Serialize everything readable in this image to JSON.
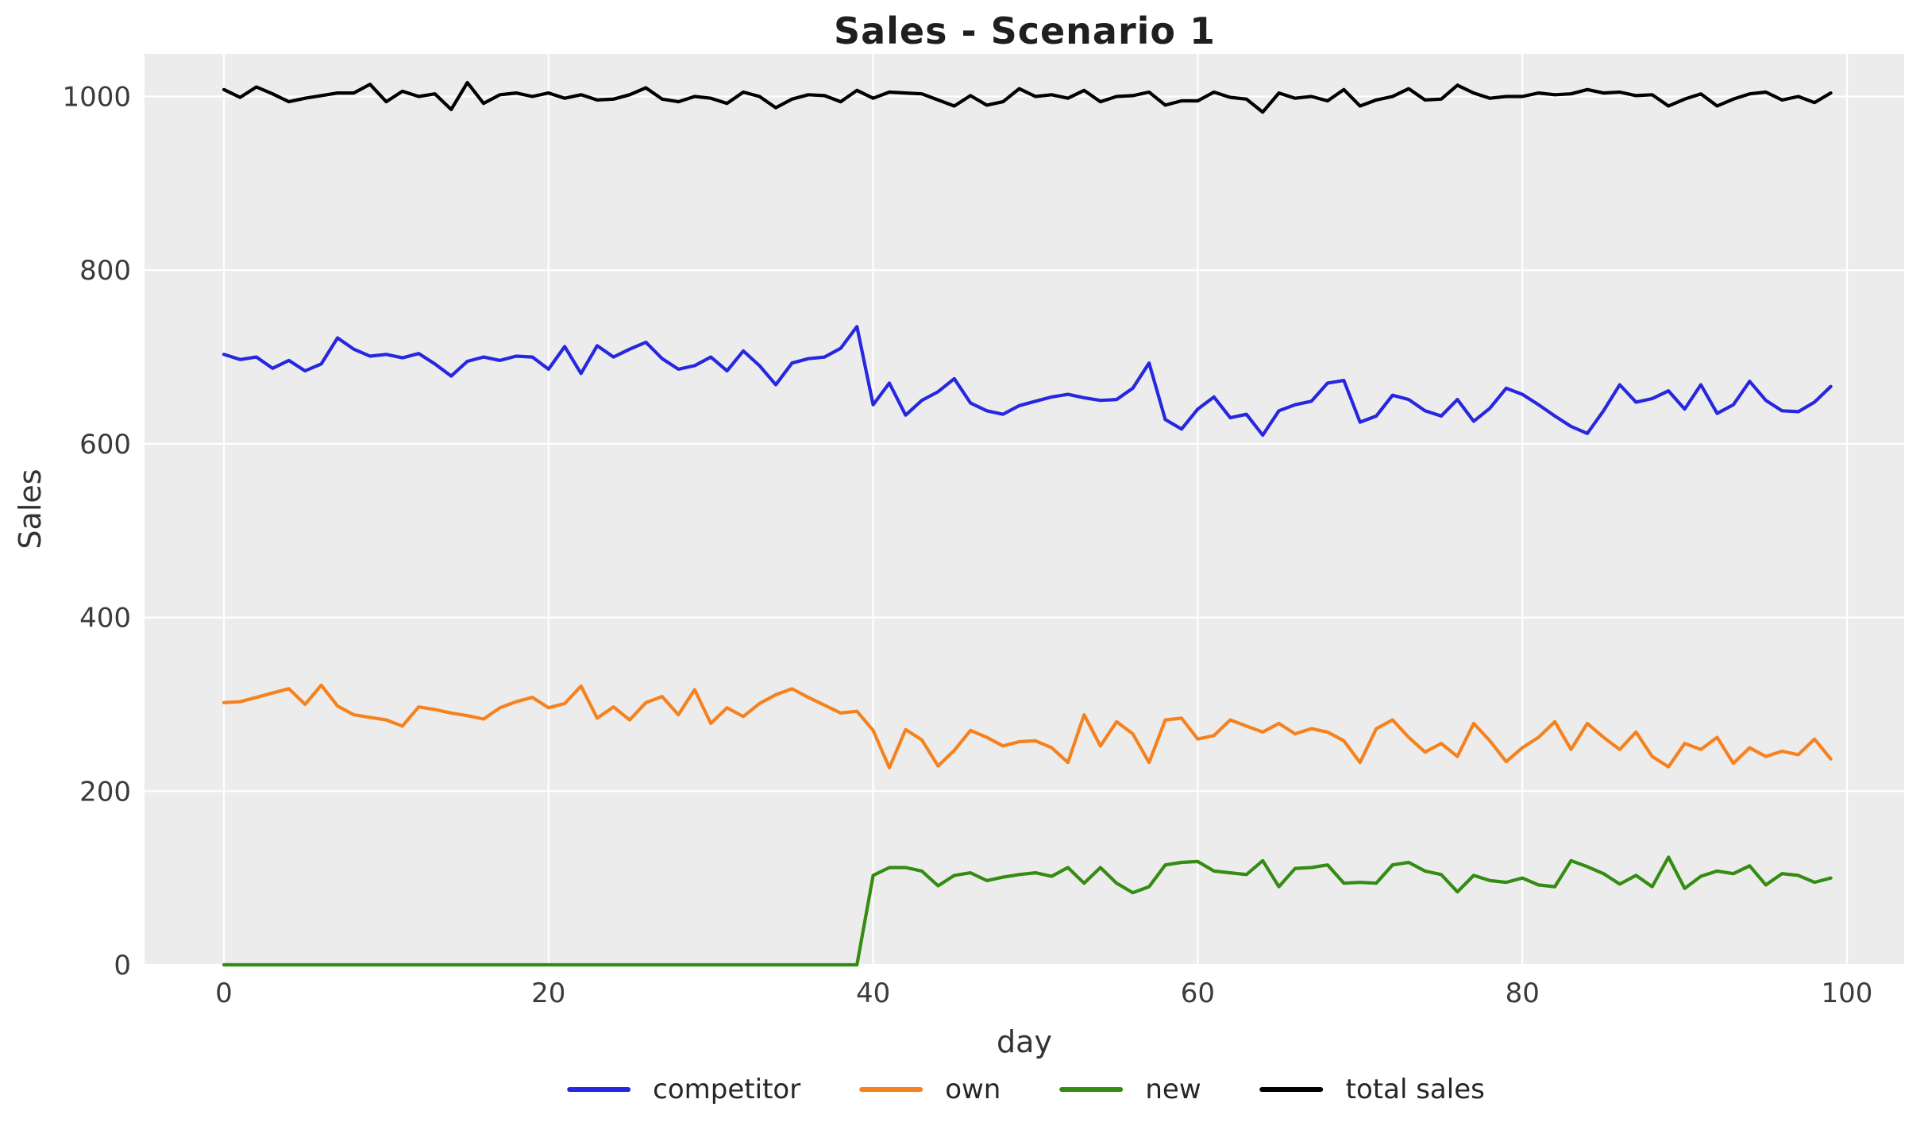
{
  "title": "Sales - Scenario 1",
  "chart_data": {
    "type": "line",
    "title": "Sales - Scenario 1",
    "xlabel": "day",
    "ylabel": "Sales",
    "grid": true,
    "legend_position": "bottom",
    "plot_background": "#ECECEC",
    "gridline_color": "#FFFFFF",
    "x_ticks": [
      0,
      20,
      40,
      60,
      80,
      100
    ],
    "y_ticks": [
      0,
      200,
      400,
      600,
      800,
      1000
    ],
    "xlim": [
      -4.9,
      103.4
    ],
    "ylim": [
      0,
      1049
    ],
    "x": [
      0,
      1,
      2,
      3,
      4,
      5,
      6,
      7,
      8,
      9,
      10,
      11,
      12,
      13,
      14,
      15,
      16,
      17,
      18,
      19,
      20,
      21,
      22,
      23,
      24,
      25,
      26,
      27,
      28,
      29,
      30,
      31,
      32,
      33,
      34,
      35,
      36,
      37,
      38,
      39,
      40,
      41,
      42,
      43,
      44,
      45,
      46,
      47,
      48,
      49,
      50,
      51,
      52,
      53,
      54,
      55,
      56,
      57,
      58,
      59,
      60,
      61,
      62,
      63,
      64,
      65,
      66,
      67,
      68,
      69,
      70,
      71,
      72,
      73,
      74,
      75,
      76,
      77,
      78,
      79,
      80,
      81,
      82,
      83,
      84,
      85,
      86,
      87,
      88,
      89,
      90,
      91,
      92,
      93,
      94,
      95,
      96,
      97,
      98,
      99
    ],
    "series": [
      {
        "name": "competitor",
        "color": "#2727E0",
        "values": [
          703,
          697,
          700,
          687,
          696,
          684,
          692,
          722,
          709,
          701,
          703,
          699,
          704,
          692,
          678,
          695,
          700,
          696,
          701,
          700,
          686,
          712,
          681,
          713,
          700,
          709,
          717,
          698,
          686,
          690,
          700,
          684,
          707,
          690,
          668,
          693,
          698,
          700,
          710,
          735,
          645,
          670,
          633,
          650,
          660,
          675,
          647,
          638,
          634,
          644,
          649,
          654,
          657,
          653,
          650,
          651,
          664,
          693,
          628,
          617,
          640,
          654,
          630,
          634,
          610,
          638,
          645,
          649,
          670,
          673,
          625,
          632,
          656,
          651,
          638,
          632,
          651,
          626,
          641,
          664,
          657,
          645,
          632,
          620,
          612,
          638,
          668,
          648,
          652,
          661,
          640,
          668,
          635,
          645,
          672,
          650,
          638,
          637,
          648,
          666
        ]
      },
      {
        "name": "own",
        "color": "#F5821E",
        "values": [
          302,
          303,
          308,
          313,
          318,
          300,
          322,
          298,
          288,
          285,
          282,
          275,
          297,
          294,
          290,
          287,
          283,
          296,
          303,
          308,
          296,
          301,
          321,
          284,
          297,
          282,
          302,
          309,
          288,
          317,
          278,
          296,
          286,
          301,
          311,
          318,
          308,
          299,
          290,
          292,
          270,
          227,
          271,
          259,
          229,
          247,
          270,
          262,
          252,
          257,
          258,
          250,
          233,
          288,
          252,
          280,
          266,
          233,
          282,
          284,
          260,
          264,
          282,
          275,
          268,
          278,
          266,
          272,
          268,
          258,
          233,
          272,
          282,
          262,
          245,
          255,
          240,
          278,
          258,
          234,
          250,
          262,
          280,
          248,
          278,
          262,
          248,
          268,
          240,
          228,
          255,
          248,
          262,
          232,
          250,
          240,
          246,
          242,
          260,
          237
        ]
      },
      {
        "name": "new",
        "color": "#348C12",
        "values": [
          0,
          0,
          0,
          0,
          0,
          0,
          0,
          0,
          0,
          0,
          0,
          0,
          0,
          0,
          0,
          0,
          0,
          0,
          0,
          0,
          0,
          0,
          0,
          0,
          0,
          0,
          0,
          0,
          0,
          0,
          0,
          0,
          0,
          0,
          0,
          0,
          0,
          0,
          0,
          0,
          103,
          112,
          112,
          108,
          91,
          103,
          106,
          97,
          101,
          104,
          106,
          102,
          112,
          94,
          112,
          94,
          83,
          90,
          115,
          118,
          119,
          108,
          106,
          104,
          120,
          90,
          111,
          112,
          115,
          94,
          95,
          94,
          115,
          118,
          108,
          104,
          84,
          103,
          97,
          95,
          100,
          92,
          90,
          120,
          113,
          105,
          93,
          103,
          90,
          124,
          88,
          102,
          108,
          105,
          114,
          92,
          105,
          103,
          95,
          100
        ]
      },
      {
        "name": "total sales",
        "color": "#000000",
        "values": [
          1008,
          999,
          1011,
          1003,
          994,
          998,
          1001,
          1004,
          1004,
          1014,
          994,
          1006,
          1000,
          1003,
          985,
          1016,
          992,
          1002,
          1004,
          1000,
          1004,
          998,
          1002,
          996,
          997,
          1002,
          1010,
          997,
          994,
          1000,
          998,
          992,
          1005,
          1000,
          987,
          997,
          1002,
          1001,
          994,
          1007,
          998,
          1005,
          1004,
          1003,
          996,
          989,
          1001,
          990,
          994,
          1009,
          1000,
          1002,
          998,
          1007,
          994,
          1000,
          1001,
          1005,
          990,
          995,
          995,
          1005,
          999,
          997,
          982,
          1004,
          998,
          1000,
          995,
          1008,
          989,
          996,
          1000,
          1009,
          996,
          997,
          1013,
          1004,
          998,
          1000,
          1000,
          1004,
          1002,
          1003,
          1008,
          1004,
          1005,
          1001,
          1002,
          989,
          997,
          1003,
          989,
          997,
          1003,
          1005,
          996,
          1000,
          993,
          1004
        ]
      }
    ]
  }
}
